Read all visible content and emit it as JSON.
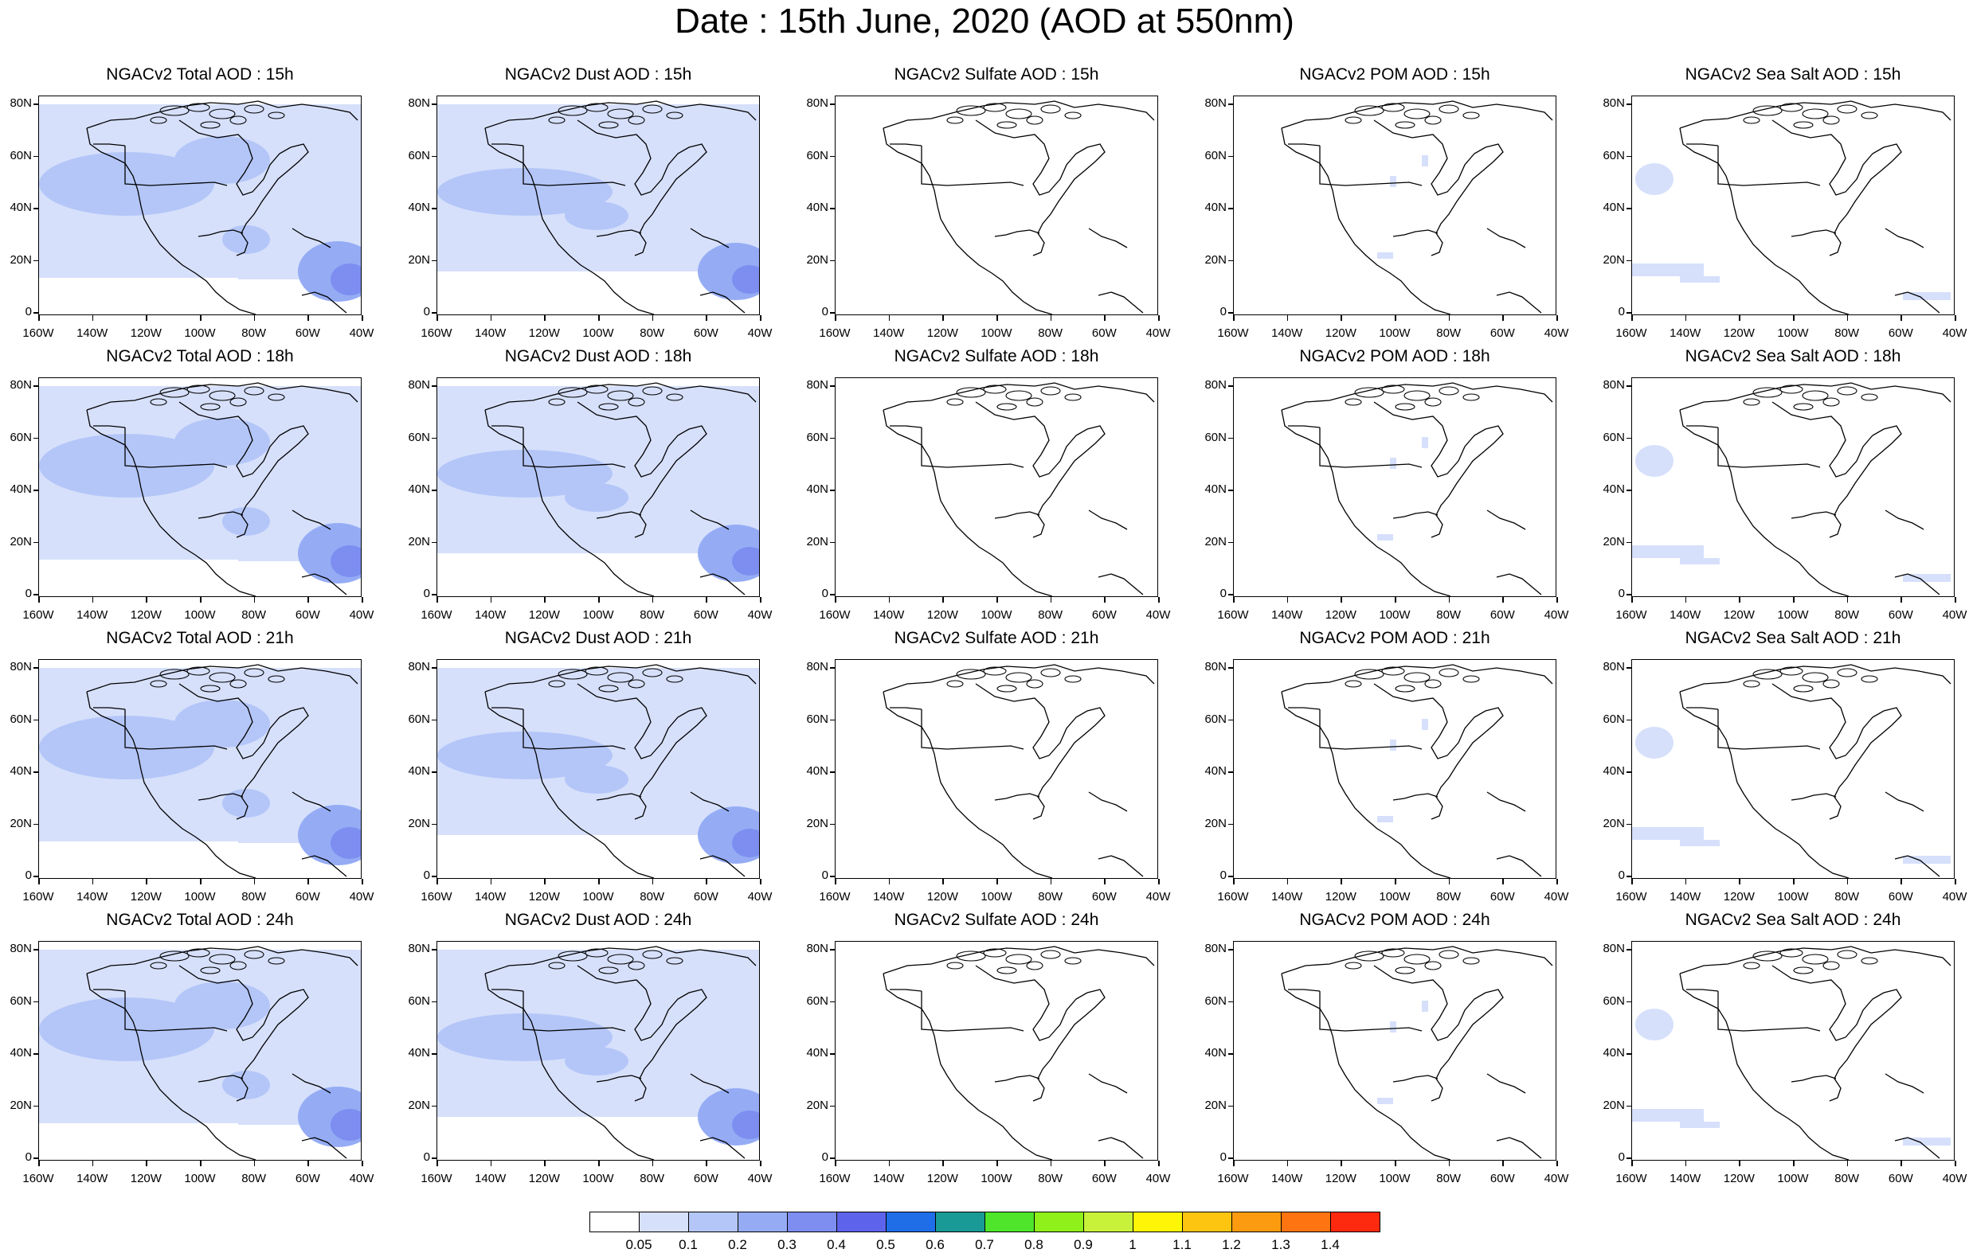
{
  "title": "Date : 15th June, 2020 (AOD at 550nm)",
  "rows": [
    "15h",
    "18h",
    "21h",
    "24h"
  ],
  "columns": [
    {
      "key": "total",
      "label": "NGACv2 Total AOD"
    },
    {
      "key": "dust",
      "label": "NGACv2 Dust AOD"
    },
    {
      "key": "sulfate",
      "label": "NGACv2 Sulfate AOD"
    },
    {
      "key": "pom",
      "label": "NGACv2 POM AOD"
    },
    {
      "key": "seasalt",
      "label": "NGACv2 Sea Salt AOD"
    }
  ],
  "panel_titles": [
    [
      "NGACv2 Total AOD : 15h",
      "NGACv2 Dust AOD : 15h",
      "NGACv2 Sulfate AOD : 15h",
      "NGACv2 POM AOD : 15h",
      "NGACv2 Sea Salt AOD : 15h"
    ],
    [
      "NGACv2 Total AOD : 18h",
      "NGACv2 Dust AOD : 18h",
      "NGACv2 Sulfate AOD : 18h",
      "NGACv2 POM AOD : 18h",
      "NGACv2 Sea Salt AOD : 18h"
    ],
    [
      "NGACv2 Total AOD : 21h",
      "NGACv2 Dust AOD : 21h",
      "NGACv2 Sulfate AOD : 21h",
      "NGACv2 POM AOD : 21h",
      "NGACv2 Sea Salt AOD : 21h"
    ],
    [
      "NGACv2 Total AOD : 24h",
      "NGACv2 Dust AOD : 24h",
      "NGACv2 Sulfate AOD : 24h",
      "NGACv2 POM AOD : 24h",
      "NGACv2 Sea Salt  AOD : 24h"
    ]
  ],
  "lat_ticks": [
    "0",
    "20N",
    "40N",
    "60N",
    "80N"
  ],
  "lon_ticks": [
    "160W",
    "140W",
    "120W",
    "100W",
    "80W",
    "60W",
    "40W"
  ],
  "colorbar": {
    "levels": [
      "0.05",
      "0.1",
      "0.2",
      "0.3",
      "0.4",
      "0.5",
      "0.6",
      "0.7",
      "0.8",
      "0.9",
      "1",
      "1.1",
      "1.2",
      "1.3",
      "1.4"
    ],
    "colors": [
      "#ffffff",
      "#d6e0fb",
      "#b4c6f8",
      "#95acf5",
      "#7d8ef0",
      "#5e63eb",
      "#1f6ee8",
      "#1a9a96",
      "#4ee52b",
      "#8ff01a",
      "#c8f23a",
      "#fef606",
      "#fdc410",
      "#fd9b10",
      "#fd7410",
      "#fe2a10"
    ]
  },
  "map_colors": {
    "light": "#d6e0fb",
    "mid": "#b4c6f8",
    "strong": "#95acf5",
    "deep": "#7d8ef0",
    "deepest": "#5e63eb",
    "coast": "#000000"
  }
}
